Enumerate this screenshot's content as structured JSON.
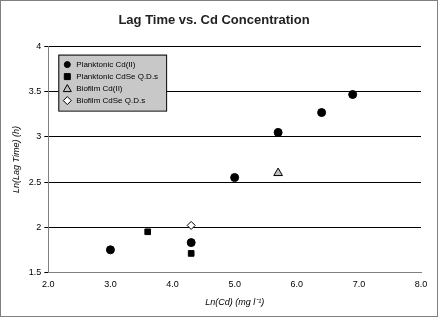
{
  "chart_data": {
    "type": "scatter",
    "title": "Lag Time vs. Cd Concentration",
    "x_label": "Ln(Cd) (mg l⁻¹)",
    "y_label": "Ln(Lag Time) (h)",
    "xlim": [
      2,
      8
    ],
    "xticks": [
      {
        "value": 2,
        "label": "2.0"
      },
      {
        "value": 3,
        "label": "3.0"
      },
      {
        "value": 4,
        "label": "4.0"
      },
      {
        "value": 5,
        "label": "5.0"
      },
      {
        "value": 6,
        "label": "6.0"
      },
      {
        "value": 7,
        "label": "7.0"
      },
      {
        "value": 8,
        "label": "8.0"
      }
    ],
    "ylim": [
      1.5,
      4
    ],
    "yticks": [
      1.5,
      2,
      2.5,
      3,
      3.5,
      4
    ],
    "grid": "y",
    "legend": "top-left",
    "series": [
      {
        "name": "Planktonic Cd(II)",
        "color": "#000000",
        "marker": "circle",
        "x": [
          3.0,
          4.3,
          5.0,
          5.7,
          6.4,
          6.9
        ],
        "values": [
          1.75,
          1.83,
          2.55,
          3.05,
          3.27,
          3.47
        ]
      },
      {
        "name": "Planktonic CdSe Q.D.s",
        "color": "#000000",
        "marker": "square",
        "x": [
          3.6,
          4.3
        ],
        "values": [
          1.95,
          1.71
        ]
      },
      {
        "name": "Biofilm Cd(II)",
        "color": "#c0c0c0",
        "marker": "triangle",
        "x": [
          5.7
        ],
        "values": [
          2.6
        ]
      },
      {
        "name": "Biofilm CdSe Q.D.s",
        "color": "#ffffff",
        "marker": "diamond",
        "x": [
          4.3
        ],
        "values": [
          2.02
        ]
      }
    ]
  }
}
